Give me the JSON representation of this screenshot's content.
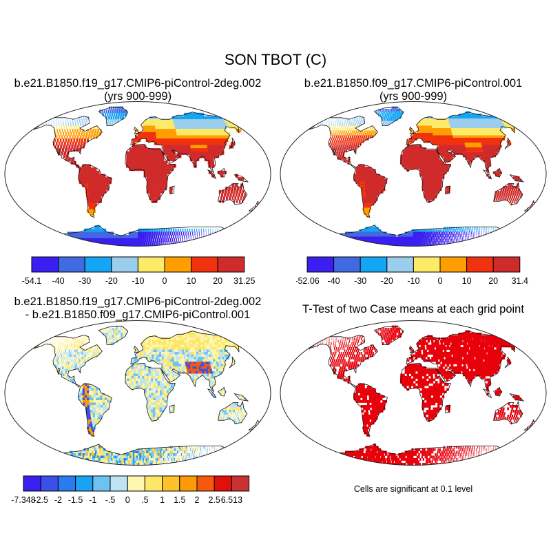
{
  "figure": {
    "title": "SON TBOT (C)"
  },
  "panels": [
    {
      "id": "case1",
      "title_line1": "b.e21.B1850.f19_g17.CMIP6-piControl-2deg.002",
      "title_line2": "(yrs 900-999)",
      "colorbar": {
        "colors": [
          "#3a1ff0",
          "#4169e1",
          "#14a5f5",
          "#9bcded",
          "#fcea68",
          "#ff9e00",
          "#f0320f",
          "#d02b2b"
        ],
        "labels": [
          "-54.1",
          "-40",
          "-30",
          "-20",
          "-10",
          "0",
          "10",
          "20",
          "31.25"
        ]
      }
    },
    {
      "id": "case2",
      "title_line1": "b.e21.B1850.f09_g17.CMIP6-piControl.001",
      "title_line2": "(yrs 900-999)",
      "colorbar": {
        "colors": [
          "#3a1ff0",
          "#4169e1",
          "#14a5f5",
          "#9bcded",
          "#fcea68",
          "#ff9e00",
          "#f0320f",
          "#d02b2b"
        ],
        "labels": [
          "-52.06",
          "-40",
          "-30",
          "-20",
          "-10",
          "0",
          "10",
          "20",
          "31.4"
        ]
      }
    },
    {
      "id": "difference",
      "title_line1": "b.e21.B1850.f19_g17.CMIP6-piControl-2deg.002",
      "title_line2": "- b.e21.B1850.f09_g17.CMIP6-piControl.001",
      "colorbar": {
        "colors": [
          "#3a1ff0",
          "#3c4fe8",
          "#2b7bf0",
          "#1aa2f5",
          "#6dc2f2",
          "#bde3f5",
          "#fdf6b0",
          "#fde766",
          "#fdc12a",
          "#fd9a08",
          "#f6580c",
          "#e0100a",
          "#c83232"
        ],
        "labels": [
          "-7.348",
          "-2.5",
          "-2",
          "-1.5",
          "-1",
          "-.5",
          "0",
          ".5",
          "1",
          "1.5",
          "2",
          "2.5",
          "6.513"
        ]
      }
    },
    {
      "id": "ttest",
      "title_line1": "T-Test of two Case means at each grid point",
      "significance_color": "#e8000b",
      "footnote": "Cells are significant at 0.1 level"
    }
  ],
  "map_colors": {
    "frame_stroke": "#222222",
    "coast_stroke": "#111111",
    "ocean": "#ffffff"
  }
}
